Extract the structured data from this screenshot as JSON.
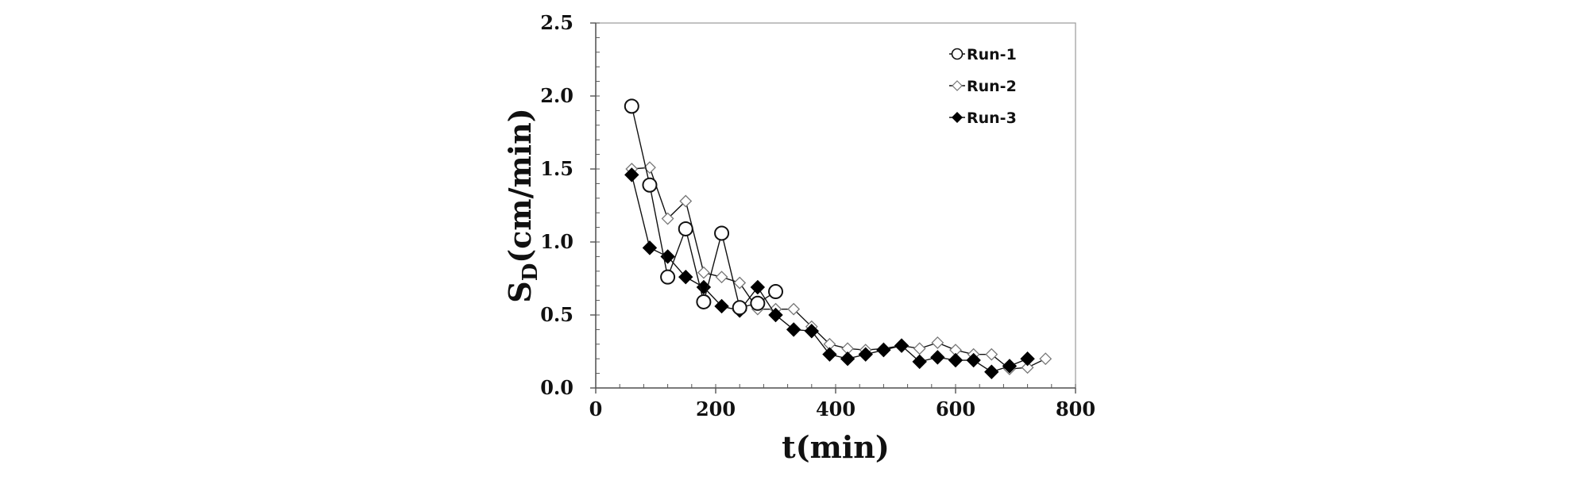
{
  "chart_data": {
    "type": "line",
    "title": "",
    "xlabel": "t(min)",
    "ylabel_main": "S",
    "ylabel_sub": "D",
    "ylabel_tail": "(cm/min)",
    "xlim": [
      0,
      800
    ],
    "ylim": [
      0,
      2.5
    ],
    "xticks": [
      0,
      200,
      400,
      600,
      800
    ],
    "yticks": [
      0.0,
      0.5,
      1.0,
      1.5,
      2.0,
      2.5
    ],
    "ytick_labels": [
      "0.0",
      "0.5",
      "1.0",
      "1.5",
      "2.0",
      "2.5"
    ],
    "xtick_labels": [
      "0",
      "200",
      "400",
      "600",
      "800"
    ],
    "grid": false,
    "legend_position": "top-right",
    "series": [
      {
        "name": "Run-1",
        "marker": "open-circle",
        "x": [
          60,
          90,
          120,
          150,
          180,
          210,
          240,
          270,
          300
        ],
        "y": [
          1.93,
          1.39,
          0.76,
          1.09,
          0.59,
          1.06,
          0.55,
          0.58,
          0.66
        ]
      },
      {
        "name": "Run-2",
        "marker": "open-diamond",
        "x": [
          60,
          90,
          120,
          150,
          180,
          210,
          240,
          270,
          300,
          330,
          360,
          390,
          420,
          450,
          480,
          510,
          540,
          570,
          600,
          630,
          660,
          690,
          720,
          750
        ],
        "y": [
          1.5,
          1.51,
          1.16,
          1.28,
          0.79,
          0.76,
          0.72,
          0.54,
          0.54,
          0.54,
          0.42,
          0.3,
          0.27,
          0.26,
          0.27,
          0.29,
          0.27,
          0.31,
          0.26,
          0.23,
          0.23,
          0.13,
          0.14,
          0.2
        ]
      },
      {
        "name": "Run-3",
        "marker": "filled-diamond",
        "x": [
          60,
          90,
          120,
          150,
          180,
          210,
          240,
          270,
          300,
          330,
          360,
          390,
          420,
          450,
          480,
          510,
          540,
          570,
          600,
          630,
          660,
          690,
          720
        ],
        "y": [
          1.46,
          0.96,
          0.9,
          0.76,
          0.69,
          0.56,
          0.53,
          0.69,
          0.5,
          0.4,
          0.39,
          0.23,
          0.2,
          0.23,
          0.26,
          0.29,
          0.18,
          0.21,
          0.19,
          0.19,
          0.11,
          0.15,
          0.2
        ]
      }
    ]
  }
}
